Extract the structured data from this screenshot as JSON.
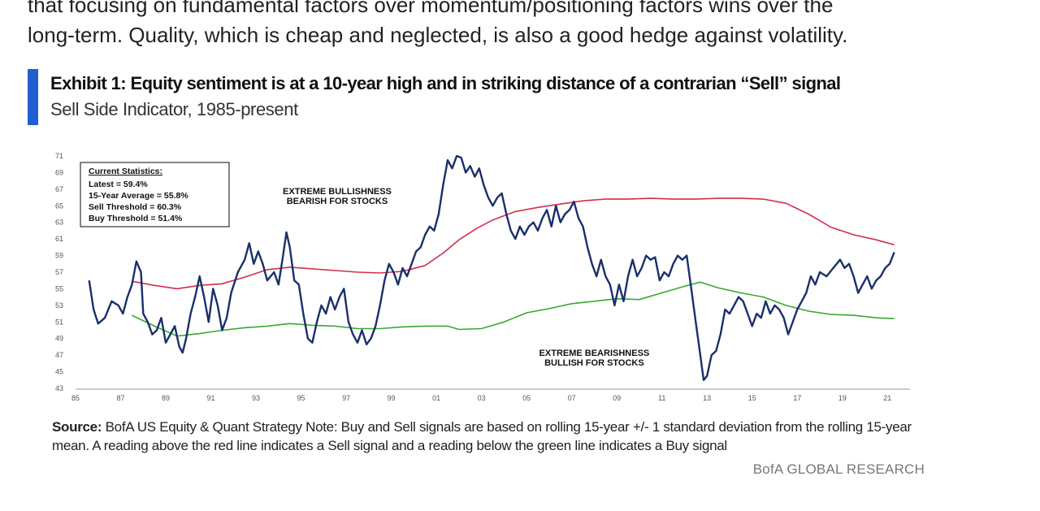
{
  "intro_text": {
    "line1": "that focusing on fundamental factors over momentum/positioning factors wins over the",
    "line2": "long-term. Quality, which is cheap and neglected, is also a good hedge against volatility."
  },
  "exhibit": {
    "title": "Exhibit 1: Equity sentiment is at a 10-year high and in striking distance of a contrarian “Sell” signal",
    "subtitle": "Sell Side Indicator, 1985-present"
  },
  "source": {
    "label": "Source:",
    "text": "BofA US Equity & Quant Strategy Note: Buy and Sell signals are based on rolling 15-year +/- 1 standard deviation from the rolling 15-year mean. A reading above the red line indicates a Sell signal and a reading below the green line indicates a Buy signal"
  },
  "brand": "BofA GLOBAL RESEARCH",
  "chart_data": {
    "type": "line",
    "title": "Exhibit 1: Equity sentiment is at a 10-year high and in striking distance of a contrarian “Sell” signal",
    "subtitle": "Sell Side Indicator, 1985-present",
    "xlabel": "",
    "ylabel": "",
    "xlim": [
      1985,
      2022
    ],
    "ylim": [
      43,
      71
    ],
    "x_tick_labels": [
      "85",
      "87",
      "89",
      "91",
      "93",
      "95",
      "97",
      "99",
      "01",
      "03",
      "05",
      "07",
      "09",
      "11",
      "13",
      "15",
      "17",
      "19",
      "21"
    ],
    "y_ticks": [
      43,
      45,
      47,
      49,
      51,
      53,
      55,
      57,
      59,
      61,
      63,
      65,
      67,
      69,
      71
    ],
    "grid": false,
    "stats_box": {
      "title": "Current Statistics:",
      "lines": [
        "Latest = 59.4%",
        "15-Year Average = 55.8%",
        "Sell Threshold = 60.3%",
        "Buy Threshold = 51.4%"
      ]
    },
    "annotations": [
      {
        "lines": [
          "EXTREME BULLISHNESS",
          "BEARISH FOR STOCKS"
        ],
        "x": 1996.6,
        "y": 66.4
      },
      {
        "lines": [
          "EXTREME BEARISHNESS",
          "BULLISH FOR STOCKS"
        ],
        "x": 2008.0,
        "y": 46.9
      }
    ],
    "series": [
      {
        "color": "#1a2f6b",
        "points": [
          [
            1985.6,
            56.0
          ],
          [
            1985.8,
            52.5
          ],
          [
            1986.0,
            50.8
          ],
          [
            1986.3,
            51.5
          ],
          [
            1986.6,
            53.5
          ],
          [
            1986.9,
            53.0
          ],
          [
            1987.1,
            52.0
          ],
          [
            1987.3,
            54.0
          ],
          [
            1987.5,
            55.5
          ],
          [
            1987.7,
            58.3
          ],
          [
            1987.9,
            57.0
          ],
          [
            1988.0,
            52.0
          ],
          [
            1988.2,
            51.0
          ],
          [
            1988.4,
            49.5
          ],
          [
            1988.6,
            50.0
          ],
          [
            1988.8,
            51.5
          ],
          [
            1989.0,
            48.5
          ],
          [
            1989.2,
            49.5
          ],
          [
            1989.4,
            50.5
          ],
          [
            1989.6,
            48.0
          ],
          [
            1989.75,
            47.3
          ],
          [
            1989.9,
            49.0
          ],
          [
            1990.1,
            52.0
          ],
          [
            1990.3,
            54.0
          ],
          [
            1990.5,
            56.5
          ],
          [
            1990.7,
            54.0
          ],
          [
            1990.9,
            51.0
          ],
          [
            1991.1,
            55.0
          ],
          [
            1991.3,
            53.0
          ],
          [
            1991.5,
            50.0
          ],
          [
            1991.7,
            51.5
          ],
          [
            1991.9,
            54.5
          ],
          [
            1992.2,
            57.0
          ],
          [
            1992.5,
            58.5
          ],
          [
            1992.7,
            60.5
          ],
          [
            1992.9,
            58.0
          ],
          [
            1993.1,
            59.5
          ],
          [
            1993.3,
            58.0
          ],
          [
            1993.5,
            56.0
          ],
          [
            1993.8,
            57.0
          ],
          [
            1994.0,
            55.5
          ],
          [
            1994.2,
            59.0
          ],
          [
            1994.35,
            61.8
          ],
          [
            1994.5,
            60.0
          ],
          [
            1994.7,
            56.0
          ],
          [
            1994.9,
            55.5
          ],
          [
            1995.1,
            52.0
          ],
          [
            1995.3,
            49.0
          ],
          [
            1995.5,
            48.5
          ],
          [
            1995.7,
            51.0
          ],
          [
            1995.9,
            53.0
          ],
          [
            1996.1,
            52.0
          ],
          [
            1996.3,
            54.0
          ],
          [
            1996.5,
            52.5
          ],
          [
            1996.7,
            54.0
          ],
          [
            1996.9,
            55.0
          ],
          [
            1997.1,
            51.0
          ],
          [
            1997.3,
            49.5
          ],
          [
            1997.5,
            48.5
          ],
          [
            1997.7,
            50.0
          ],
          [
            1997.9,
            48.3
          ],
          [
            1998.1,
            49.0
          ],
          [
            1998.3,
            50.5
          ],
          [
            1998.5,
            53.0
          ],
          [
            1998.7,
            56.0
          ],
          [
            1998.9,
            58.0
          ],
          [
            1999.1,
            57.0
          ],
          [
            1999.3,
            55.5
          ],
          [
            1999.5,
            57.5
          ],
          [
            1999.7,
            56.5
          ],
          [
            1999.9,
            58.0
          ],
          [
            2000.1,
            59.5
          ],
          [
            2000.3,
            60.0
          ],
          [
            2000.5,
            61.5
          ],
          [
            2000.7,
            62.5
          ],
          [
            2000.9,
            62.0
          ],
          [
            2001.1,
            64.0
          ],
          [
            2001.3,
            67.5
          ],
          [
            2001.5,
            70.5
          ],
          [
            2001.7,
            69.5
          ],
          [
            2001.9,
            71.0
          ],
          [
            2002.1,
            70.8
          ],
          [
            2002.3,
            69.0
          ],
          [
            2002.5,
            69.8
          ],
          [
            2002.7,
            68.5
          ],
          [
            2002.9,
            69.5
          ],
          [
            2003.1,
            67.5
          ],
          [
            2003.3,
            66.0
          ],
          [
            2003.5,
            65.0
          ],
          [
            2003.7,
            66.0
          ],
          [
            2003.9,
            66.5
          ],
          [
            2004.1,
            64.0
          ],
          [
            2004.3,
            62.0
          ],
          [
            2004.5,
            61.0
          ],
          [
            2004.7,
            62.5
          ],
          [
            2004.9,
            61.5
          ],
          [
            2005.1,
            62.5
          ],
          [
            2005.3,
            63.0
          ],
          [
            2005.5,
            62.0
          ],
          [
            2005.7,
            63.5
          ],
          [
            2005.9,
            64.5
          ],
          [
            2006.1,
            62.5
          ],
          [
            2006.3,
            65.0
          ],
          [
            2006.5,
            63.0
          ],
          [
            2006.7,
            64.0
          ],
          [
            2006.9,
            64.5
          ],
          [
            2007.1,
            65.5
          ],
          [
            2007.3,
            63.5
          ],
          [
            2007.5,
            62.5
          ],
          [
            2007.7,
            60.0
          ],
          [
            2007.9,
            58.0
          ],
          [
            2008.1,
            56.5
          ],
          [
            2008.3,
            58.5
          ],
          [
            2008.5,
            56.5
          ],
          [
            2008.7,
            55.5
          ],
          [
            2008.9,
            53.0
          ],
          [
            2009.1,
            55.5
          ],
          [
            2009.3,
            53.5
          ],
          [
            2009.5,
            56.5
          ],
          [
            2009.7,
            58.5
          ],
          [
            2009.9,
            56.5
          ],
          [
            2010.1,
            57.5
          ],
          [
            2010.3,
            59.0
          ],
          [
            2010.5,
            58.5
          ],
          [
            2010.7,
            58.8
          ],
          [
            2010.9,
            56.0
          ],
          [
            2011.1,
            57.0
          ],
          [
            2011.3,
            56.5
          ],
          [
            2011.5,
            58.0
          ],
          [
            2011.7,
            59.0
          ],
          [
            2011.9,
            58.5
          ],
          [
            2012.1,
            59.0
          ],
          [
            2012.3,
            55.0
          ],
          [
            2012.5,
            51.0
          ],
          [
            2012.7,
            47.0
          ],
          [
            2012.85,
            44.0
          ],
          [
            2013.0,
            44.5
          ],
          [
            2013.2,
            47.0
          ],
          [
            2013.4,
            47.5
          ],
          [
            2013.6,
            49.5
          ],
          [
            2013.8,
            52.5
          ],
          [
            2014.0,
            52.0
          ],
          [
            2014.2,
            53.0
          ],
          [
            2014.4,
            54.0
          ],
          [
            2014.6,
            53.5
          ],
          [
            2014.8,
            52.0
          ],
          [
            2015.0,
            50.5
          ],
          [
            2015.2,
            52.0
          ],
          [
            2015.4,
            51.5
          ],
          [
            2015.6,
            53.5
          ],
          [
            2015.8,
            52.0
          ],
          [
            2016.0,
            53.0
          ],
          [
            2016.2,
            52.5
          ],
          [
            2016.4,
            51.5
          ],
          [
            2016.6,
            49.5
          ],
          [
            2016.8,
            51.0
          ],
          [
            2017.0,
            52.5
          ],
          [
            2017.2,
            53.5
          ],
          [
            2017.4,
            54.5
          ],
          [
            2017.6,
            56.5
          ],
          [
            2017.8,
            55.5
          ],
          [
            2018.0,
            57.0
          ],
          [
            2018.3,
            56.5
          ],
          [
            2018.6,
            57.5
          ],
          [
            2018.9,
            58.5
          ],
          [
            2019.1,
            57.5
          ],
          [
            2019.3,
            58.0
          ],
          [
            2019.5,
            56.5
          ],
          [
            2019.7,
            54.5
          ],
          [
            2019.9,
            55.5
          ],
          [
            2020.1,
            56.5
          ],
          [
            2020.3,
            55.0
          ],
          [
            2020.5,
            56.0
          ],
          [
            2020.7,
            56.5
          ],
          [
            2020.9,
            57.5
          ],
          [
            2021.1,
            58.0
          ],
          [
            2021.3,
            59.4
          ]
        ]
      },
      {
        "color": "#d32f4a",
        "points": [
          [
            1987.5,
            55.9
          ],
          [
            1988.5,
            55.4
          ],
          [
            1989.5,
            55.0
          ],
          [
            1990.5,
            55.4
          ],
          [
            1991.5,
            55.6
          ],
          [
            1992.5,
            56.4
          ],
          [
            1993.5,
            57.3
          ],
          [
            1994.5,
            57.6
          ],
          [
            1995.5,
            57.4
          ],
          [
            1996.5,
            57.2
          ],
          [
            1997.5,
            57.0
          ],
          [
            1998.5,
            56.9
          ],
          [
            1999.5,
            57.1
          ],
          [
            2000.5,
            57.8
          ],
          [
            2001.3,
            59.3
          ],
          [
            2002.0,
            60.9
          ],
          [
            2002.8,
            62.3
          ],
          [
            2003.5,
            63.3
          ],
          [
            2004.5,
            64.3
          ],
          [
            2005.5,
            64.8
          ],
          [
            2006.5,
            65.2
          ],
          [
            2007.5,
            65.6
          ],
          [
            2008.5,
            65.8
          ],
          [
            2009.5,
            65.8
          ],
          [
            2010.5,
            65.9
          ],
          [
            2011.5,
            65.8
          ],
          [
            2012.5,
            65.8
          ],
          [
            2013.5,
            65.9
          ],
          [
            2014.5,
            65.9
          ],
          [
            2015.5,
            65.8
          ],
          [
            2016.5,
            65.3
          ],
          [
            2017.5,
            64.0
          ],
          [
            2018.5,
            62.4
          ],
          [
            2019.5,
            61.5
          ],
          [
            2020.5,
            60.9
          ],
          [
            2021.3,
            60.3
          ]
        ]
      },
      {
        "color": "#3aa832",
        "points": [
          [
            1987.5,
            51.8
          ],
          [
            1988.5,
            50.5
          ],
          [
            1989.5,
            49.3
          ],
          [
            1990.5,
            49.6
          ],
          [
            1991.5,
            50.0
          ],
          [
            1992.5,
            50.3
          ],
          [
            1993.5,
            50.5
          ],
          [
            1994.5,
            50.8
          ],
          [
            1995.5,
            50.6
          ],
          [
            1996.5,
            50.5
          ],
          [
            1997.5,
            50.2
          ],
          [
            1998.5,
            50.2
          ],
          [
            1999.5,
            50.4
          ],
          [
            2000.5,
            50.5
          ],
          [
            2001.5,
            50.5
          ],
          [
            2002.0,
            50.1
          ],
          [
            2003.0,
            50.2
          ],
          [
            2004.0,
            51.0
          ],
          [
            2005.0,
            52.1
          ],
          [
            2006.0,
            52.6
          ],
          [
            2007.0,
            53.2
          ],
          [
            2008.0,
            53.5
          ],
          [
            2009.0,
            53.8
          ],
          [
            2010.0,
            53.7
          ],
          [
            2011.0,
            54.5
          ],
          [
            2012.0,
            55.3
          ],
          [
            2012.7,
            55.8
          ],
          [
            2013.5,
            55.1
          ],
          [
            2014.5,
            54.5
          ],
          [
            2015.5,
            54.0
          ],
          [
            2016.5,
            53.0
          ],
          [
            2017.5,
            52.3
          ],
          [
            2018.5,
            51.9
          ],
          [
            2019.5,
            51.8
          ],
          [
            2020.5,
            51.5
          ],
          [
            2021.3,
            51.4
          ]
        ]
      }
    ]
  }
}
